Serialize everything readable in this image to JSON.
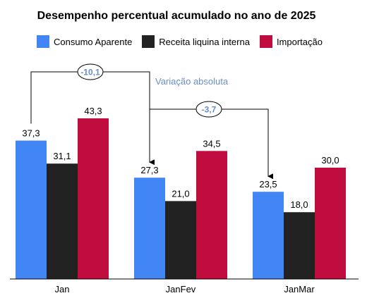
{
  "chart_data": {
    "type": "bar",
    "title": "Desempenho percentual acumulado no ano de 2025",
    "categories": [
      "Jan",
      "JanFev",
      "JanMar"
    ],
    "series": [
      {
        "name": "Consumo Aparente",
        "color": "#4285f4",
        "values": [
          "37,3",
          "27,3",
          "23,5"
        ]
      },
      {
        "name": "Receita liquina interna",
        "color": "#222222",
        "values": [
          "31,1",
          "21,0",
          "18,0"
        ]
      },
      {
        "name": "Importação",
        "color": "#c00c3f",
        "values": [
          "43,3",
          "34,5",
          "30,0"
        ]
      }
    ],
    "ylim": [
      0,
      60
    ],
    "grid": false,
    "legend_position": "top",
    "annotations": [
      {
        "from": "Jan",
        "to": "JanFev",
        "series": "Consumo Aparente",
        "value": "-10,1",
        "label": "Variação absoluta"
      },
      {
        "from": "JanFev",
        "to": "JanMar",
        "series": "Consumo Aparente",
        "value": "-3,7"
      }
    ],
    "annotation_color": "#6a8ec8"
  }
}
